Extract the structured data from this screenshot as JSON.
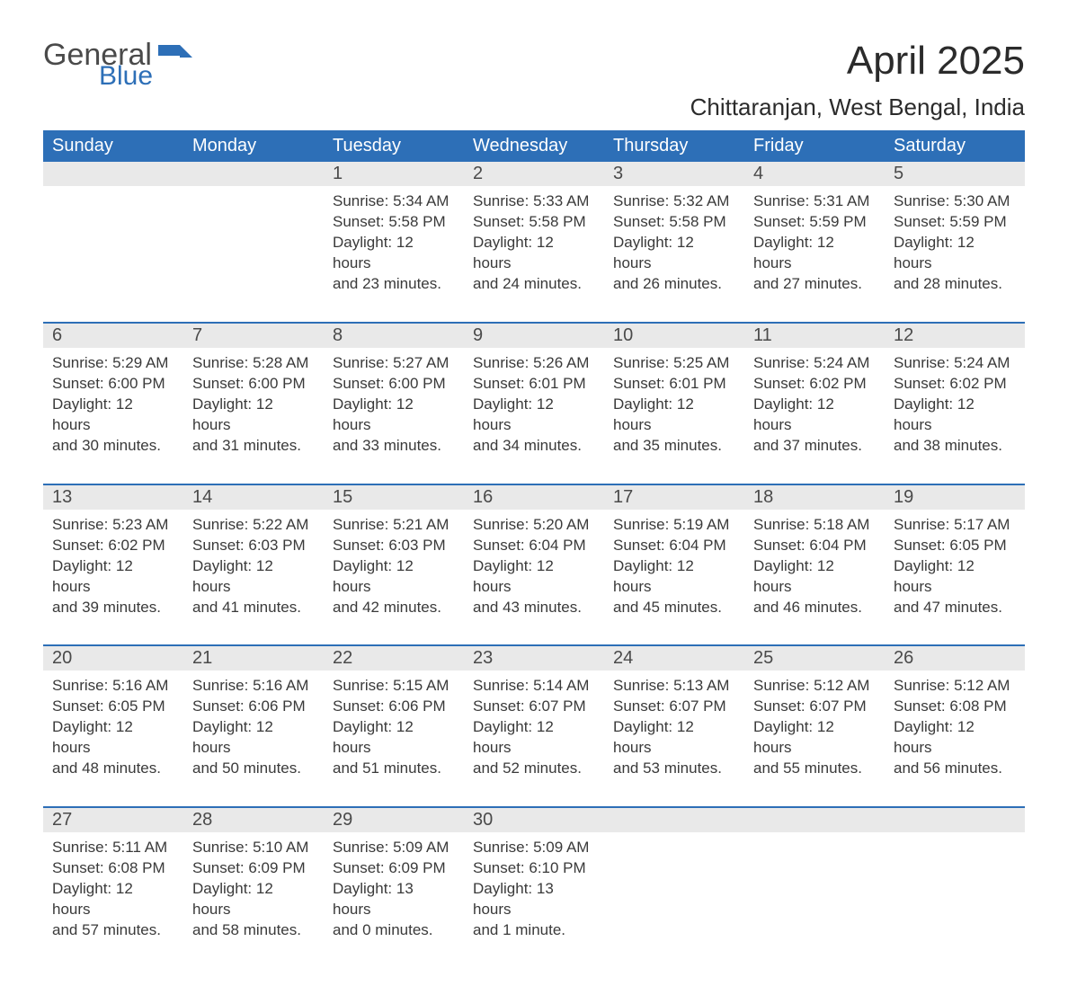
{
  "logo": {
    "general": "General",
    "blue": "Blue"
  },
  "title": "April 2025",
  "location": "Chittaranjan, West Bengal, India",
  "colors": {
    "header_bg": "#2d6fb7",
    "header_text": "#ffffff",
    "daynum_bg": "#e9e9e9",
    "daynum_border": "#2d6fb7",
    "body_text": "#3a3a3a",
    "title_text": "#2b2b2b",
    "logo_gray": "#4a4a4a",
    "logo_blue": "#2d6fb7",
    "page_bg": "#ffffff"
  },
  "typography": {
    "title_fontsize": 44,
    "location_fontsize": 26,
    "header_fontsize": 20,
    "daynum_fontsize": 20,
    "cell_fontsize": 17
  },
  "weekdays": [
    "Sunday",
    "Monday",
    "Tuesday",
    "Wednesday",
    "Thursday",
    "Friday",
    "Saturday"
  ],
  "weeks": [
    [
      null,
      null,
      {
        "n": "1",
        "sr": "Sunrise: 5:34 AM",
        "ss": "Sunset: 5:58 PM",
        "d1": "Daylight: 12 hours",
        "d2": "and 23 minutes."
      },
      {
        "n": "2",
        "sr": "Sunrise: 5:33 AM",
        "ss": "Sunset: 5:58 PM",
        "d1": "Daylight: 12 hours",
        "d2": "and 24 minutes."
      },
      {
        "n": "3",
        "sr": "Sunrise: 5:32 AM",
        "ss": "Sunset: 5:58 PM",
        "d1": "Daylight: 12 hours",
        "d2": "and 26 minutes."
      },
      {
        "n": "4",
        "sr": "Sunrise: 5:31 AM",
        "ss": "Sunset: 5:59 PM",
        "d1": "Daylight: 12 hours",
        "d2": "and 27 minutes."
      },
      {
        "n": "5",
        "sr": "Sunrise: 5:30 AM",
        "ss": "Sunset: 5:59 PM",
        "d1": "Daylight: 12 hours",
        "d2": "and 28 minutes."
      }
    ],
    [
      {
        "n": "6",
        "sr": "Sunrise: 5:29 AM",
        "ss": "Sunset: 6:00 PM",
        "d1": "Daylight: 12 hours",
        "d2": "and 30 minutes."
      },
      {
        "n": "7",
        "sr": "Sunrise: 5:28 AM",
        "ss": "Sunset: 6:00 PM",
        "d1": "Daylight: 12 hours",
        "d2": "and 31 minutes."
      },
      {
        "n": "8",
        "sr": "Sunrise: 5:27 AM",
        "ss": "Sunset: 6:00 PM",
        "d1": "Daylight: 12 hours",
        "d2": "and 33 minutes."
      },
      {
        "n": "9",
        "sr": "Sunrise: 5:26 AM",
        "ss": "Sunset: 6:01 PM",
        "d1": "Daylight: 12 hours",
        "d2": "and 34 minutes."
      },
      {
        "n": "10",
        "sr": "Sunrise: 5:25 AM",
        "ss": "Sunset: 6:01 PM",
        "d1": "Daylight: 12 hours",
        "d2": "and 35 minutes."
      },
      {
        "n": "11",
        "sr": "Sunrise: 5:24 AM",
        "ss": "Sunset: 6:02 PM",
        "d1": "Daylight: 12 hours",
        "d2": "and 37 minutes."
      },
      {
        "n": "12",
        "sr": "Sunrise: 5:24 AM",
        "ss": "Sunset: 6:02 PM",
        "d1": "Daylight: 12 hours",
        "d2": "and 38 minutes."
      }
    ],
    [
      {
        "n": "13",
        "sr": "Sunrise: 5:23 AM",
        "ss": "Sunset: 6:02 PM",
        "d1": "Daylight: 12 hours",
        "d2": "and 39 minutes."
      },
      {
        "n": "14",
        "sr": "Sunrise: 5:22 AM",
        "ss": "Sunset: 6:03 PM",
        "d1": "Daylight: 12 hours",
        "d2": "and 41 minutes."
      },
      {
        "n": "15",
        "sr": "Sunrise: 5:21 AM",
        "ss": "Sunset: 6:03 PM",
        "d1": "Daylight: 12 hours",
        "d2": "and 42 minutes."
      },
      {
        "n": "16",
        "sr": "Sunrise: 5:20 AM",
        "ss": "Sunset: 6:04 PM",
        "d1": "Daylight: 12 hours",
        "d2": "and 43 minutes."
      },
      {
        "n": "17",
        "sr": "Sunrise: 5:19 AM",
        "ss": "Sunset: 6:04 PM",
        "d1": "Daylight: 12 hours",
        "d2": "and 45 minutes."
      },
      {
        "n": "18",
        "sr": "Sunrise: 5:18 AM",
        "ss": "Sunset: 6:04 PM",
        "d1": "Daylight: 12 hours",
        "d2": "and 46 minutes."
      },
      {
        "n": "19",
        "sr": "Sunrise: 5:17 AM",
        "ss": "Sunset: 6:05 PM",
        "d1": "Daylight: 12 hours",
        "d2": "and 47 minutes."
      }
    ],
    [
      {
        "n": "20",
        "sr": "Sunrise: 5:16 AM",
        "ss": "Sunset: 6:05 PM",
        "d1": "Daylight: 12 hours",
        "d2": "and 48 minutes."
      },
      {
        "n": "21",
        "sr": "Sunrise: 5:16 AM",
        "ss": "Sunset: 6:06 PM",
        "d1": "Daylight: 12 hours",
        "d2": "and 50 minutes."
      },
      {
        "n": "22",
        "sr": "Sunrise: 5:15 AM",
        "ss": "Sunset: 6:06 PM",
        "d1": "Daylight: 12 hours",
        "d2": "and 51 minutes."
      },
      {
        "n": "23",
        "sr": "Sunrise: 5:14 AM",
        "ss": "Sunset: 6:07 PM",
        "d1": "Daylight: 12 hours",
        "d2": "and 52 minutes."
      },
      {
        "n": "24",
        "sr": "Sunrise: 5:13 AM",
        "ss": "Sunset: 6:07 PM",
        "d1": "Daylight: 12 hours",
        "d2": "and 53 minutes."
      },
      {
        "n": "25",
        "sr": "Sunrise: 5:12 AM",
        "ss": "Sunset: 6:07 PM",
        "d1": "Daylight: 12 hours",
        "d2": "and 55 minutes."
      },
      {
        "n": "26",
        "sr": "Sunrise: 5:12 AM",
        "ss": "Sunset: 6:08 PM",
        "d1": "Daylight: 12 hours",
        "d2": "and 56 minutes."
      }
    ],
    [
      {
        "n": "27",
        "sr": "Sunrise: 5:11 AM",
        "ss": "Sunset: 6:08 PM",
        "d1": "Daylight: 12 hours",
        "d2": "and 57 minutes."
      },
      {
        "n": "28",
        "sr": "Sunrise: 5:10 AM",
        "ss": "Sunset: 6:09 PM",
        "d1": "Daylight: 12 hours",
        "d2": "and 58 minutes."
      },
      {
        "n": "29",
        "sr": "Sunrise: 5:09 AM",
        "ss": "Sunset: 6:09 PM",
        "d1": "Daylight: 13 hours",
        "d2": "and 0 minutes."
      },
      {
        "n": "30",
        "sr": "Sunrise: 5:09 AM",
        "ss": "Sunset: 6:10 PM",
        "d1": "Daylight: 13 hours",
        "d2": "and 1 minute."
      },
      null,
      null,
      null
    ]
  ]
}
